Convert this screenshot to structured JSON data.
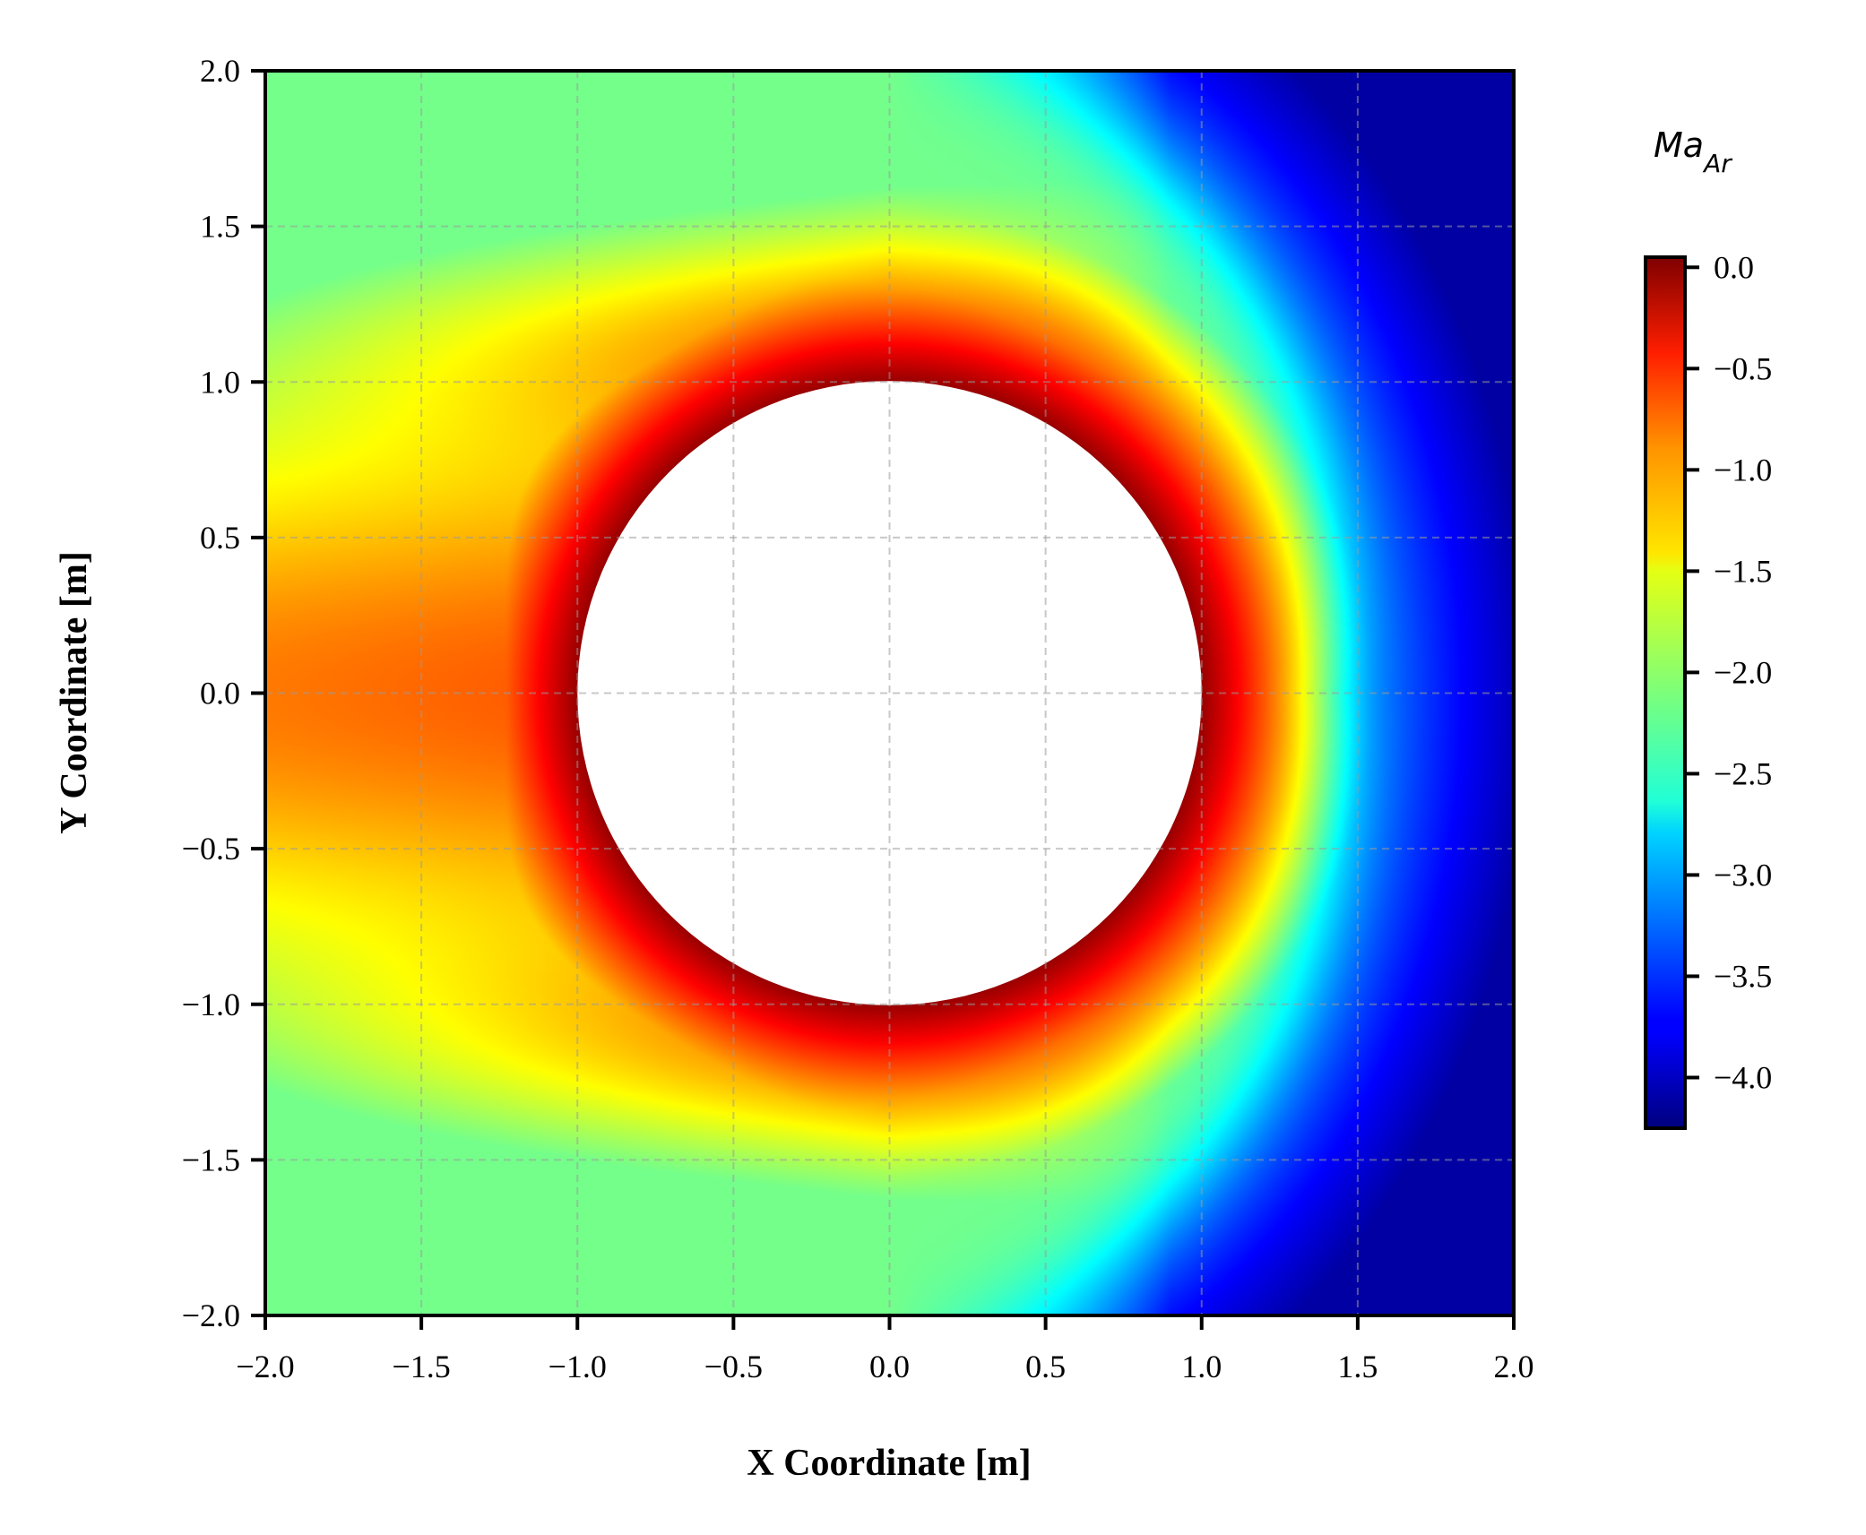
{
  "chart_data": {
    "type": "heatmap",
    "title": "",
    "xlabel": "X Coordinate [m]",
    "ylabel": "Y Coordinate [m]",
    "xlim": [
      -2.0,
      2.0
    ],
    "ylim": [
      -2.0,
      2.0
    ],
    "x_ticks": [
      "−2.0",
      "−1.5",
      "−1.0",
      "−0.5",
      "0.0",
      "0.5",
      "1.0",
      "1.5",
      "2.0"
    ],
    "y_ticks": [
      "−2.0",
      "−1.5",
      "−1.0",
      "−0.5",
      "0.0",
      "0.5",
      "1.0",
      "1.5",
      "2.0"
    ],
    "x_tick_values": [
      -2.0,
      -1.5,
      -1.0,
      -0.5,
      0.0,
      0.5,
      1.0,
      1.5,
      2.0
    ],
    "y_tick_values": [
      -2.0,
      -1.5,
      -1.0,
      -0.5,
      0.0,
      0.5,
      1.0,
      1.5,
      2.0
    ],
    "grid": true,
    "colormap": "jet",
    "obstacle": {
      "shape": "circle",
      "center": [
        0.0,
        0.0
      ],
      "radius": 1.0,
      "fill": "#ffffff"
    },
    "field": {
      "description_values": "color scale from 0.0 (near obstacle, dark red) to about -4.2 (far right, dark blue)",
      "min": -4.2,
      "max": 0.0,
      "bow_shock_x_on_axis": 1.4
    },
    "colorbar": {
      "title": "Ma",
      "title_subscript": "Ar",
      "range": [
        -4.25,
        0.05
      ],
      "ticks": [
        "0.0",
        "−0.5",
        "−1.0",
        "−1.5",
        "−2.0",
        "−2.5",
        "−3.0",
        "−3.5",
        "−4.0"
      ],
      "tick_values": [
        0.0,
        -0.5,
        -1.0,
        -1.5,
        -2.0,
        -2.5,
        -3.0,
        -3.5,
        -4.0
      ],
      "placement": "right"
    }
  }
}
